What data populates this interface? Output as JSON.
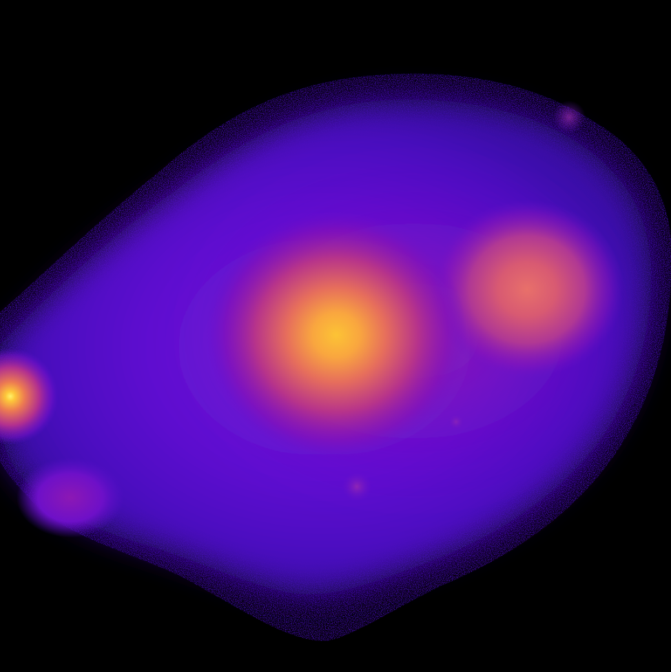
{
  "image": {
    "kind": "false-color astronomical image",
    "background_color": "#000000",
    "colormap": [
      "#0d0887",
      "#5302a3",
      "#8b0aa5",
      "#b83289",
      "#db5c68",
      "#f48849",
      "#febc2a",
      "#f0f921"
    ]
  },
  "features": [
    {
      "name": "diffuse-halo",
      "color": "#6a12d8"
    },
    {
      "name": "central-bright-core",
      "color": "#f9b233"
    },
    {
      "name": "upper-right-bright-clump",
      "color": "#e06a6a"
    },
    {
      "name": "left-edge-point-source",
      "color": "#ffe24a"
    },
    {
      "name": "lower-left-faint-blob",
      "color": "#8a18b8"
    },
    {
      "name": "small-upper-right-knot",
      "color": "#7a2fd8"
    },
    {
      "name": "small-lower-center-knot",
      "color": "#a03aa8"
    }
  ]
}
